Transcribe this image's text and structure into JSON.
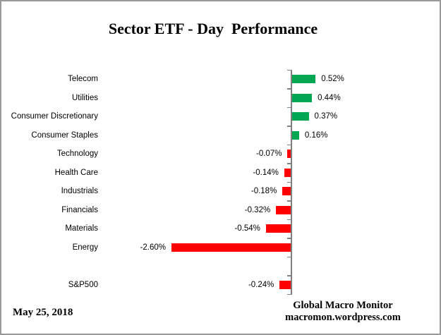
{
  "title": "Sector ETF - Day  Performance",
  "footer": {
    "date": "May 25, 2018",
    "credit_line1": "Global Macro Monitor",
    "credit_line2": "macromon.wordpress.com"
  },
  "chart_data": {
    "type": "bar",
    "orientation": "horizontal",
    "title": "Sector ETF - Day  Performance",
    "categories": [
      "Telecom",
      "Utilities",
      "Consumer Discretionary",
      "Consumer Staples",
      "Technology",
      "Health Care",
      "Industrials",
      "Financials",
      "Materials",
      "Energy",
      "",
      "S&P500"
    ],
    "values": [
      0.52,
      0.44,
      0.37,
      0.16,
      -0.07,
      -0.14,
      -0.18,
      -0.32,
      -0.54,
      -2.6,
      null,
      -0.24
    ],
    "value_labels": [
      "0.52%",
      "0.44%",
      "0.37%",
      "0.16%",
      "-0.07%",
      "-0.14%",
      "-0.18%",
      "-0.32%",
      "-0.54%",
      "-2.60%",
      "",
      "-0.24%"
    ],
    "unit": "%",
    "positive_color": "#00A651",
    "negative_color": "#FF0000",
    "axis_color": "#808080",
    "value_axis_visible": false,
    "grid": false,
    "legend": "none"
  }
}
